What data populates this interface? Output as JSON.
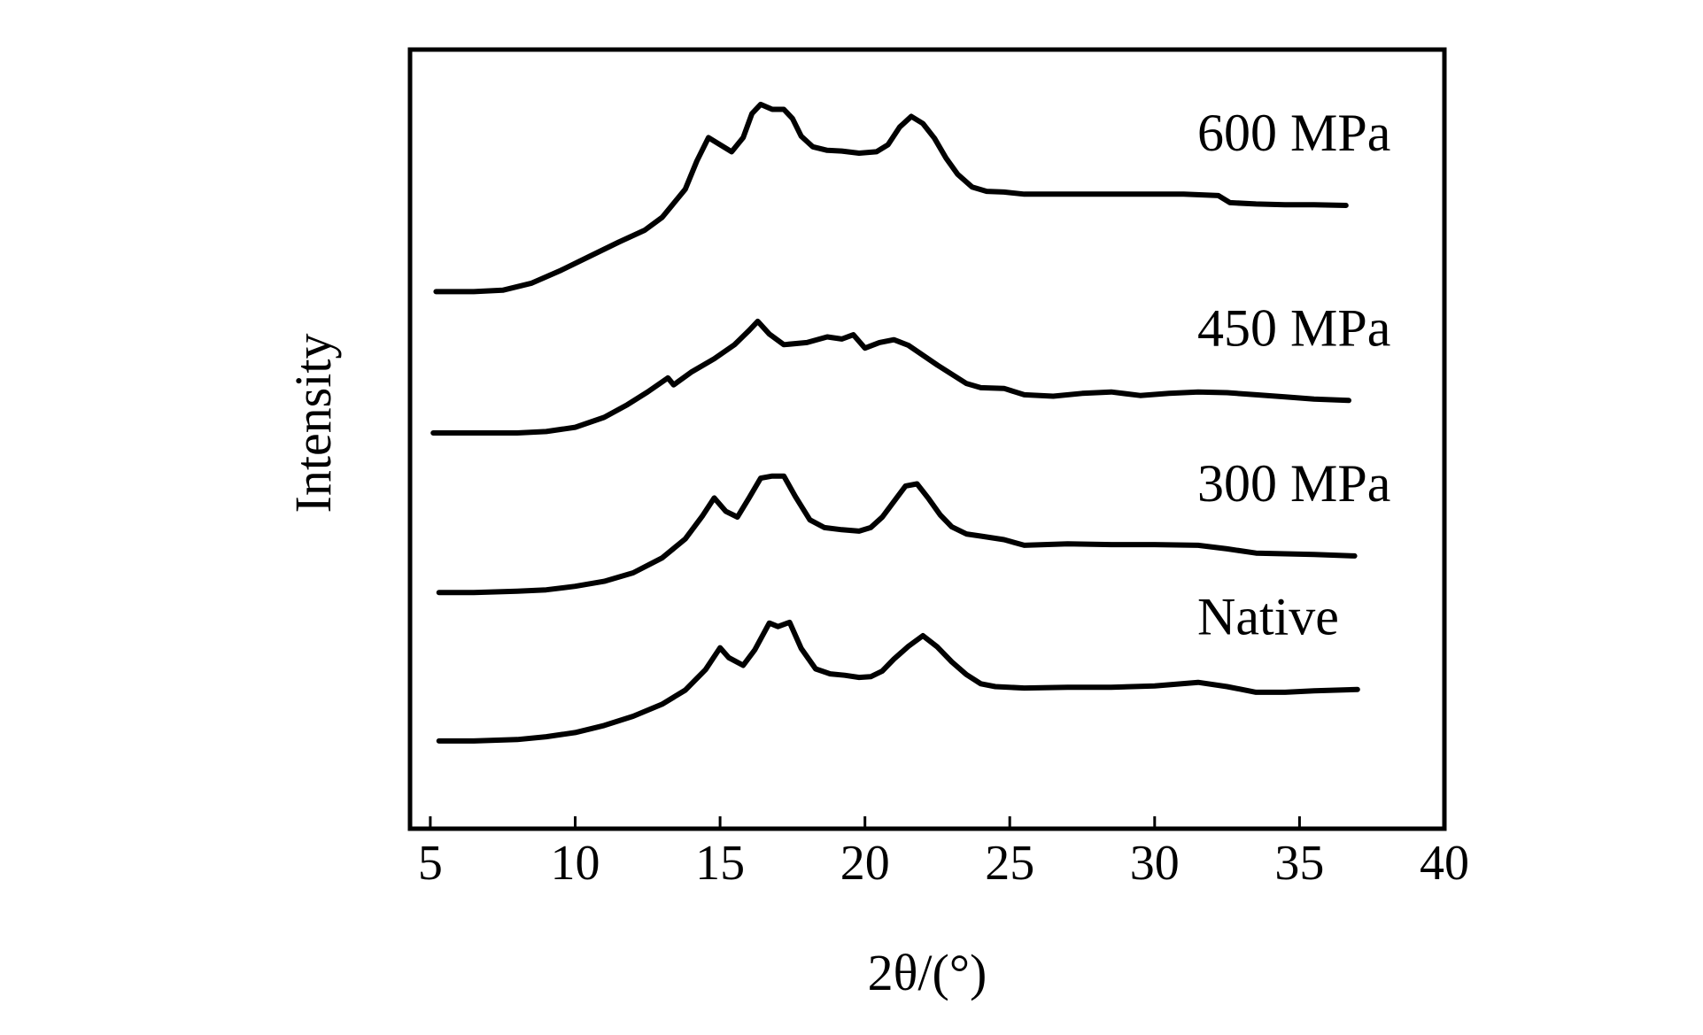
{
  "chart_data": {
    "type": "line",
    "title": "",
    "xlabel": "2θ/(°)",
    "ylabel": "Intensity",
    "xlim": [
      4.3,
      40
    ],
    "x_ticks": [
      5,
      10,
      15,
      20,
      25,
      30,
      35,
      40
    ],
    "x_tick_labels": [
      "5",
      "10",
      "15",
      "20",
      "25",
      "30",
      "35",
      "40"
    ],
    "y_ticks_shown": false,
    "grid": false,
    "legend": "inline labels at right of each curve",
    "line_color": "#000000",
    "y_scale": "arbitrary intensity units, curves vertically offset (stacked); range 0-100",
    "ylim": [
      0,
      100
    ],
    "series": [
      {
        "name": "600 MPa",
        "x": [
          5.2,
          6.5,
          7.5,
          8.5,
          9.5,
          10.5,
          11.5,
          12.4,
          13.0,
          13.8,
          14.2,
          14.6,
          15.0,
          15.4,
          15.8,
          16.1,
          16.4,
          16.8,
          17.2,
          17.5,
          17.8,
          18.2,
          18.7,
          19.2,
          19.8,
          20.4,
          20.8,
          21.2,
          21.6,
          22.0,
          22.4,
          22.8,
          23.2,
          23.7,
          24.2,
          24.8,
          25.5,
          27.0,
          29.0,
          31.0,
          32.2,
          32.6,
          33.5,
          34.5,
          35.5,
          36.6
        ],
        "y": [
          70.0,
          70.0,
          70.2,
          71.2,
          73.0,
          75.0,
          77.0,
          78.7,
          80.5,
          84.5,
          88.5,
          91.8,
          90.8,
          89.8,
          91.8,
          95.2,
          96.5,
          95.8,
          95.8,
          94.5,
          92.0,
          90.5,
          90.0,
          89.9,
          89.6,
          89.8,
          90.8,
          93.3,
          94.8,
          93.8,
          91.7,
          88.9,
          86.6,
          84.8,
          84.2,
          84.1,
          83.8,
          83.8,
          83.8,
          83.8,
          83.6,
          82.6,
          82.4,
          82.3,
          82.3,
          82.2
        ]
      },
      {
        "name": "450 MPa",
        "x": [
          5.1,
          6.5,
          8.0,
          9.0,
          10.0,
          11.0,
          11.8,
          12.5,
          13.2,
          13.4,
          14.0,
          14.8,
          15.5,
          16.0,
          16.3,
          16.7,
          17.2,
          18.0,
          18.7,
          19.2,
          19.6,
          20.0,
          20.5,
          21.0,
          21.5,
          22.5,
          23.5,
          24.0,
          24.8,
          25.5,
          26.5,
          27.5,
          28.5,
          29.5,
          30.5,
          31.5,
          32.5,
          33.5,
          34.5,
          35.5,
          36.7
        ],
        "y": [
          50.0,
          50.0,
          50.0,
          50.2,
          50.8,
          52.2,
          54.0,
          55.8,
          57.8,
          56.8,
          58.6,
          60.5,
          62.5,
          64.5,
          65.8,
          64.0,
          62.5,
          62.8,
          63.6,
          63.3,
          63.9,
          62.0,
          62.8,
          63.2,
          62.4,
          59.6,
          57.0,
          56.4,
          56.3,
          55.4,
          55.2,
          55.6,
          55.8,
          55.3,
          55.6,
          55.8,
          55.7,
          55.4,
          55.1,
          54.8,
          54.6
        ]
      },
      {
        "name": "300 MPa",
        "x": [
          5.3,
          6.5,
          8.0,
          9.0,
          10.0,
          11.0,
          12.0,
          13.0,
          13.8,
          14.4,
          14.8,
          15.2,
          15.6,
          16.0,
          16.4,
          16.8,
          17.2,
          17.6,
          18.1,
          18.6,
          19.2,
          19.8,
          20.2,
          20.6,
          21.0,
          21.4,
          21.8,
          22.2,
          22.6,
          23.0,
          23.5,
          24.0,
          24.8,
          25.5,
          27.0,
          28.5,
          30.0,
          31.5,
          32.5,
          33.5,
          34.5,
          35.5,
          36.9
        ],
        "y": [
          27.4,
          27.4,
          27.6,
          27.8,
          28.3,
          29.0,
          30.2,
          32.3,
          35.0,
          38.3,
          40.8,
          38.9,
          38.1,
          40.8,
          43.6,
          43.9,
          43.9,
          41.0,
          37.7,
          36.6,
          36.3,
          36.1,
          36.6,
          38.1,
          40.3,
          42.5,
          42.8,
          40.7,
          38.4,
          36.7,
          35.7,
          35.4,
          34.9,
          34.1,
          34.3,
          34.2,
          34.2,
          34.1,
          33.6,
          33.0,
          32.9,
          32.8,
          32.6
        ]
      },
      {
        "name": "Native",
        "x": [
          5.3,
          6.5,
          8.0,
          9.0,
          10.0,
          11.0,
          12.0,
          13.0,
          13.8,
          14.5,
          15.0,
          15.3,
          15.8,
          16.2,
          16.7,
          17.0,
          17.4,
          17.8,
          18.3,
          18.8,
          19.3,
          19.8,
          20.2,
          20.6,
          21.0,
          21.5,
          22.0,
          22.5,
          23.0,
          23.5,
          24.0,
          24.5,
          25.5,
          27.0,
          28.5,
          30.0,
          31.5,
          32.5,
          33.5,
          34.5,
          35.5,
          37.0
        ],
        "y": [
          6.4,
          6.4,
          6.6,
          7.0,
          7.6,
          8.6,
          9.9,
          11.6,
          13.6,
          16.5,
          19.6,
          18.2,
          17.1,
          19.3,
          23.1,
          22.6,
          23.2,
          19.5,
          16.6,
          15.9,
          15.7,
          15.4,
          15.5,
          16.3,
          18.0,
          19.8,
          21.3,
          19.7,
          17.6,
          15.8,
          14.5,
          14.1,
          13.9,
          14.0,
          14.0,
          14.2,
          14.7,
          14.1,
          13.3,
          13.3,
          13.5,
          13.7
        ]
      }
    ]
  }
}
